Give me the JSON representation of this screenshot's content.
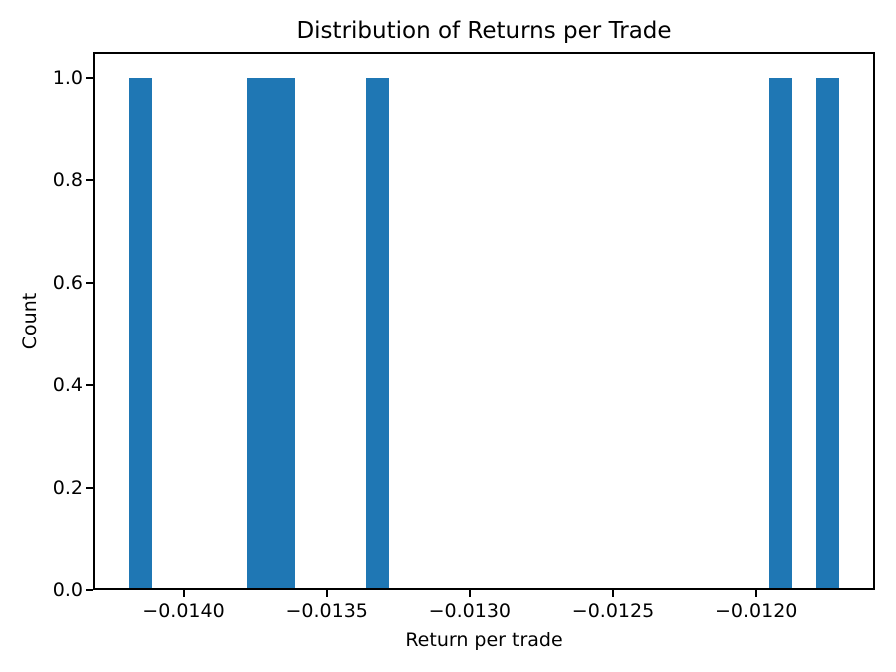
{
  "figure": {
    "background": "#ffffff",
    "spine_color": "#000000",
    "tick_color": "#000000",
    "text_color": "#000000"
  },
  "chart_data": {
    "type": "bar",
    "subtype": "histogram",
    "title": "Distribution of Returns per Trade",
    "xlabel": "Return per trade",
    "ylabel": "Count",
    "bar_color": "#1f77b4",
    "grid": false,
    "legend": null,
    "n_bins": 30,
    "bin_width": 8.28e-05,
    "data_range": [
      -0.014192,
      -0.011709
    ],
    "bars": [
      {
        "x0": -0.014192,
        "x1": -0.014109,
        "count": 1
      },
      {
        "x0": -0.013778,
        "x1": -0.013695,
        "count": 1
      },
      {
        "x0": -0.013695,
        "x1": -0.013612,
        "count": 1
      },
      {
        "x0": -0.013364,
        "x1": -0.013281,
        "count": 1
      },
      {
        "x0": -0.011957,
        "x1": -0.011874,
        "count": 1
      },
      {
        "x0": -0.011792,
        "x1": -0.011709,
        "count": 1
      }
    ],
    "xlim": [
      -0.014316,
      -0.011585
    ],
    "ylim": [
      0,
      1.05
    ],
    "x_ticks": [
      {
        "value": -0.014,
        "label": "−0.0140"
      },
      {
        "value": -0.0135,
        "label": "−0.0135"
      },
      {
        "value": -0.013,
        "label": "−0.0130"
      },
      {
        "value": -0.0125,
        "label": "−0.0125"
      },
      {
        "value": -0.012,
        "label": "−0.0120"
      }
    ],
    "y_ticks": [
      {
        "value": 0.0,
        "label": "0.0"
      },
      {
        "value": 0.2,
        "label": "0.2"
      },
      {
        "value": 0.4,
        "label": "0.4"
      },
      {
        "value": 0.6,
        "label": "0.6"
      },
      {
        "value": 0.8,
        "label": "0.8"
      },
      {
        "value": 1.0,
        "label": "1.0"
      }
    ]
  }
}
